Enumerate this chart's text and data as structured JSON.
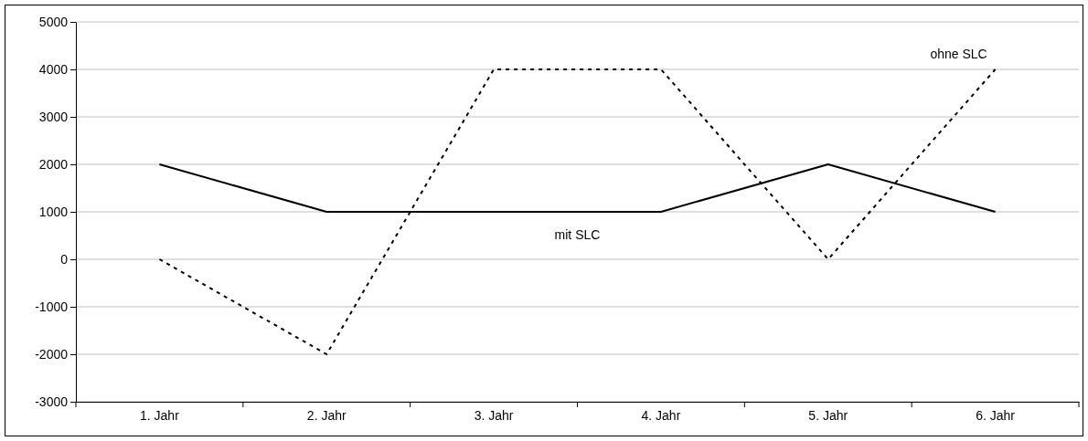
{
  "chart_data": {
    "type": "line",
    "categories": [
      "1. Jahr",
      "2. Jahr",
      "3. Jahr",
      "4. Jahr",
      "5. Jahr",
      "6. Jahr"
    ],
    "series": [
      {
        "name": "mit SLC",
        "color": "#000000",
        "line_style": "solid",
        "values": [
          2000,
          1000,
          1000,
          1000,
          2000,
          1000
        ]
      },
      {
        "name": "ohne SLC",
        "color": "#000000",
        "line_style": "dotted",
        "values": [
          0,
          -2000,
          4000,
          4000,
          0,
          4000
        ]
      }
    ],
    "ylim": [
      -3000,
      5000
    ],
    "yticks": [
      -3000,
      -2000,
      -1000,
      0,
      1000,
      2000,
      3000,
      4000,
      5000
    ],
    "grid": "y",
    "marker": "none"
  }
}
